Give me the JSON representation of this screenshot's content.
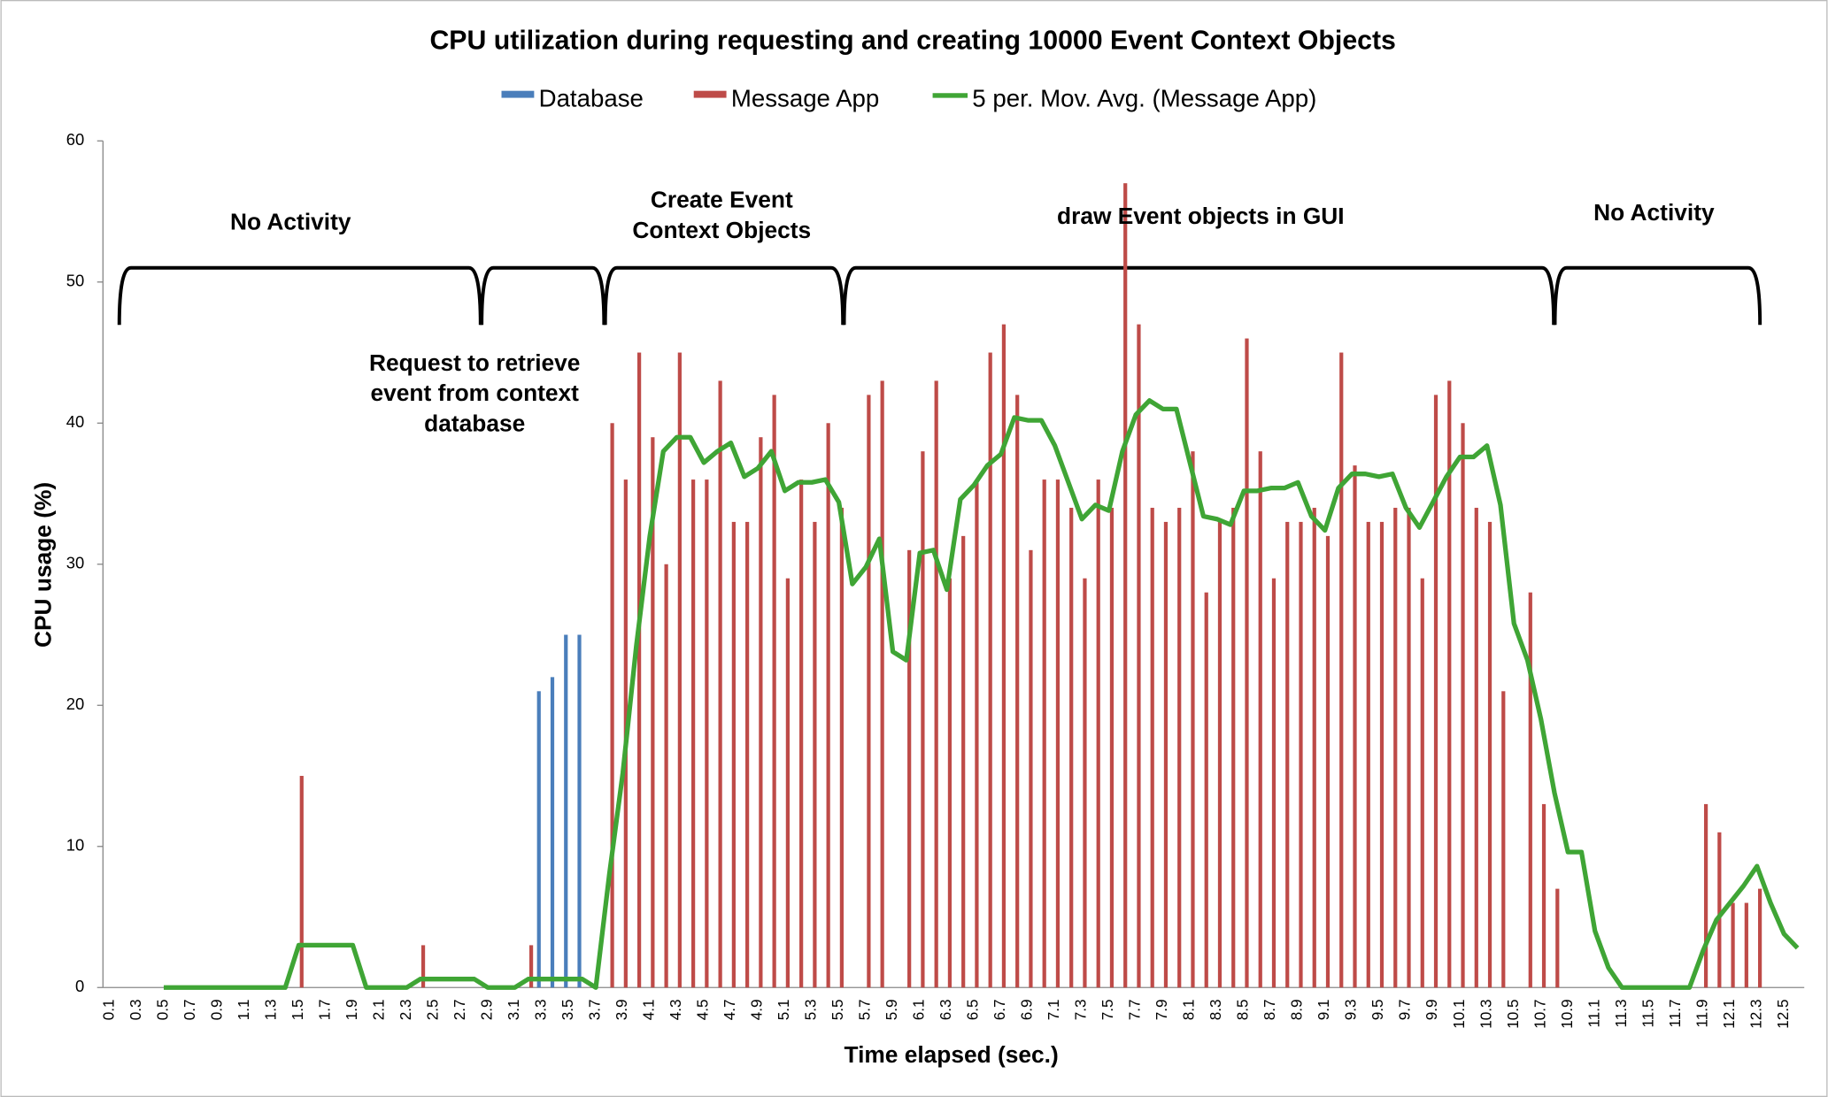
{
  "chart_data": {
    "type": "bar",
    "title": "CPU utilization during requesting and creating 10000 Event Context Objects",
    "x_label": "Time elapsed (sec.)",
    "y_label": "CPU usage (%)",
    "ylim": [
      0,
      60
    ],
    "yticks": [
      0,
      10,
      20,
      30,
      40,
      50,
      60
    ],
    "grid": false,
    "legend": "top",
    "categories": [
      "0.1",
      null,
      "0.3",
      null,
      "0.5",
      null,
      "0.7",
      null,
      "0.9",
      null,
      "1.1",
      null,
      "1.3",
      null,
      "1.5",
      null,
      "1.7",
      null,
      "1.9",
      null,
      "2.1",
      null,
      "2.3",
      null,
      "2.5",
      null,
      "2.7",
      null,
      "2.9",
      null,
      "3.1",
      null,
      "3.3",
      null,
      "3.5",
      null,
      "3.7",
      null,
      "3.9",
      null,
      "4.1",
      null,
      "4.3",
      null,
      "4.5",
      null,
      "4.7",
      null,
      "4.9",
      null,
      "5.1",
      null,
      "5.3",
      null,
      "5.5",
      null,
      "5.7",
      null,
      "5.9",
      null,
      "6.1",
      null,
      "6.3",
      null,
      "6.5",
      null,
      "6.7",
      null,
      "6.9",
      null,
      "7.1",
      null,
      "7.3",
      null,
      "7.5",
      null,
      "7.7",
      null,
      "7.9",
      null,
      "8.1",
      null,
      "8.3",
      null,
      "8.5",
      null,
      "8.7",
      null,
      "8.9",
      null,
      "9.1",
      null,
      "9.3",
      null,
      "9.5",
      null,
      "9.7",
      null,
      "9.9",
      null,
      "10.1",
      null,
      "10.3",
      null,
      "10.5",
      null,
      "10.7",
      null,
      "10.9",
      null,
      "11.1",
      null,
      "11.3",
      null,
      "11.5",
      null,
      "11.7",
      null,
      "11.9",
      null,
      "12.1",
      null,
      "12.3",
      null,
      "12.5",
      null
    ],
    "series": [
      {
        "name": "Database",
        "type": "bar",
        "color": "#4a7ebb",
        "values": [
          0,
          0,
          0,
          0,
          0,
          0,
          0,
          0,
          0,
          0,
          0,
          0,
          0,
          0,
          0,
          0,
          0,
          0,
          0,
          0,
          0,
          0,
          0,
          0,
          0,
          0,
          0,
          0,
          0,
          0,
          0,
          0,
          21,
          22,
          25,
          25,
          0,
          0,
          0,
          0,
          0,
          0,
          0,
          0,
          0,
          0,
          0,
          0,
          0,
          0,
          0,
          0,
          0,
          0,
          0,
          0,
          0,
          0,
          0,
          0,
          0,
          0,
          0,
          0,
          0,
          0,
          0,
          0,
          0,
          0,
          0,
          0,
          0,
          0,
          0,
          0,
          0,
          0,
          0,
          0,
          0,
          0,
          0,
          0,
          0,
          0,
          0,
          0,
          0,
          0,
          0,
          0,
          0,
          0,
          0,
          0,
          0,
          0,
          0,
          0,
          0,
          0,
          0,
          0,
          0,
          0,
          0,
          0,
          0,
          0,
          0,
          0,
          0,
          0,
          0,
          0,
          0,
          0,
          0,
          0,
          0,
          0,
          0,
          0,
          0,
          0
        ]
      },
      {
        "name": "Message App",
        "type": "bar",
        "color": "#be4b48",
        "values": [
          0,
          0,
          0,
          0,
          0,
          0,
          0,
          0,
          0,
          0,
          0,
          0,
          0,
          0,
          15,
          0,
          0,
          0,
          0,
          0,
          0,
          0,
          0,
          3,
          0,
          0,
          0,
          0,
          0,
          0,
          0,
          3,
          0,
          0,
          0,
          0,
          0,
          40,
          36,
          45,
          39,
          30,
          45,
          36,
          36,
          43,
          33,
          33,
          39,
          42,
          29,
          36,
          33,
          40,
          34,
          0,
          42,
          43,
          0,
          31,
          38,
          43,
          29,
          32,
          36,
          45,
          47,
          42,
          31,
          36,
          36,
          34,
          29,
          36,
          34,
          57,
          47,
          34,
          33,
          34,
          38,
          28,
          33,
          34,
          46,
          38,
          29,
          33,
          33,
          34,
          32,
          45,
          37,
          33,
          33,
          34,
          34,
          29,
          42,
          43,
          40,
          34,
          33,
          21,
          0,
          28,
          13,
          7,
          0,
          0,
          0,
          0,
          0,
          0,
          0,
          0,
          0,
          0,
          13,
          11,
          6,
          6,
          7,
          0,
          0,
          0
        ]
      },
      {
        "name": "5 per. Mov. Avg. (Message App)",
        "type": "line",
        "color": "#3fa535",
        "values": [
          null,
          null,
          null,
          null,
          0,
          0,
          0,
          0,
          0,
          0,
          0,
          0,
          0,
          0,
          3,
          3,
          3,
          3,
          3,
          0,
          0,
          0,
          0,
          0.6,
          0.6,
          0.6,
          0.6,
          0.6,
          0,
          0,
          0,
          0.6,
          0.6,
          0.6,
          0.6,
          0.6,
          0,
          8,
          15.2,
          24.2,
          32,
          38,
          39,
          39,
          37.2,
          38,
          38.6,
          36.2,
          36.8,
          38,
          35.2,
          35.8,
          35.8,
          36,
          34.4,
          28.6,
          29.8,
          31.8,
          23.8,
          23.2,
          30.8,
          31,
          28.2,
          34.6,
          35.6,
          37,
          37.8,
          40.4,
          40.2,
          40.2,
          38.4,
          35.8,
          33.2,
          34.2,
          33.8,
          38,
          40.6,
          41.6,
          41,
          41,
          37.2,
          33.4,
          33.2,
          32.8,
          35.2,
          35.2,
          35.4,
          35.4,
          35.8,
          33.4,
          32.4,
          35.4,
          36.4,
          36.4,
          36.2,
          36.4,
          34,
          32.6,
          34.4,
          36.2,
          37.6,
          37.6,
          38.4,
          34.2,
          25.8,
          23.2,
          19,
          13.8,
          9.6,
          9.6,
          4,
          1.4,
          0,
          0,
          0,
          0,
          0,
          0,
          2.6,
          4.8,
          6,
          7.2,
          8.6,
          6,
          3.8,
          2.8
        ]
      }
    ],
    "annotations": [
      {
        "lines": [
          "No Activity"
        ]
      },
      {
        "lines": [
          "Request to retrieve",
          "event from context",
          "database"
        ]
      },
      {
        "lines": [
          "Create Event",
          "Context Objects"
        ]
      },
      {
        "lines": [
          "draw Event objects in GUI"
        ]
      },
      {
        "lines": [
          "No Activity"
        ]
      }
    ]
  }
}
